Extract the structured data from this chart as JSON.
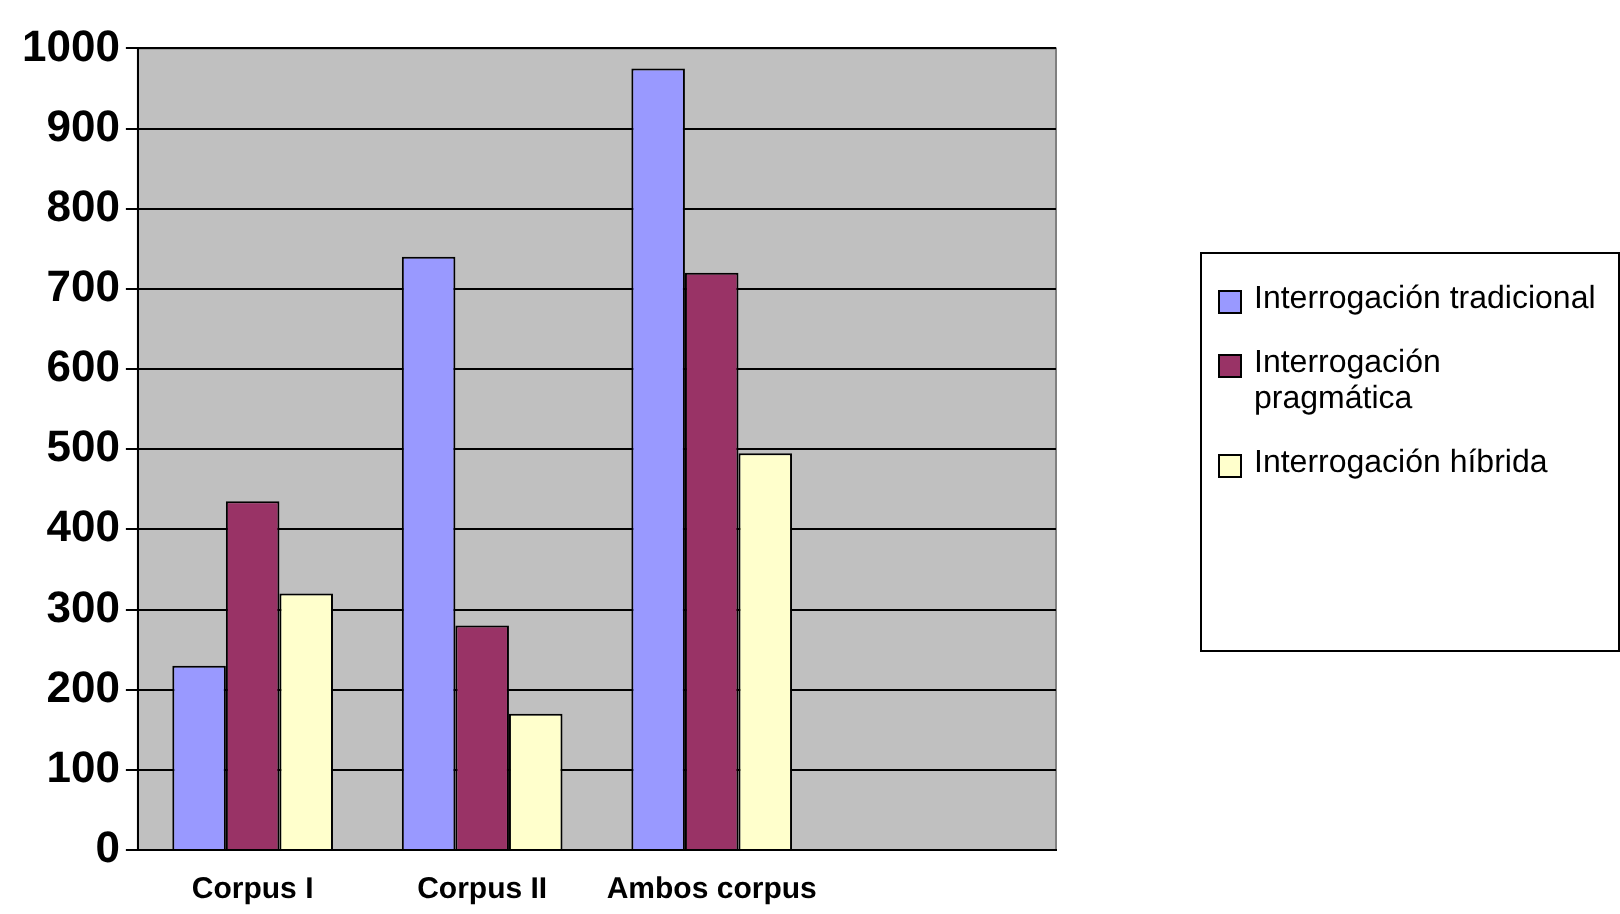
{
  "chart_data": {
    "type": "bar",
    "categories": [
      "Corpus I",
      "Corpus II",
      "Ambos corpus",
      null
    ],
    "series": [
      {
        "name": "Interrogación tradicional",
        "color": "#9999ff",
        "values": [
          230,
          740,
          975,
          null
        ]
      },
      {
        "name": "Interrogación pragmática",
        "color": "#993366",
        "values": [
          435,
          280,
          720,
          null
        ]
      },
      {
        "name": "Interrogación híbrida",
        "color": "#ffffcc",
        "values": [
          320,
          170,
          495,
          null
        ]
      }
    ],
    "ylim": [
      0,
      1000
    ],
    "yticks": [
      0,
      100,
      200,
      300,
      400,
      500,
      600,
      700,
      800,
      900,
      1000
    ],
    "grid": "y",
    "legend": "right"
  }
}
